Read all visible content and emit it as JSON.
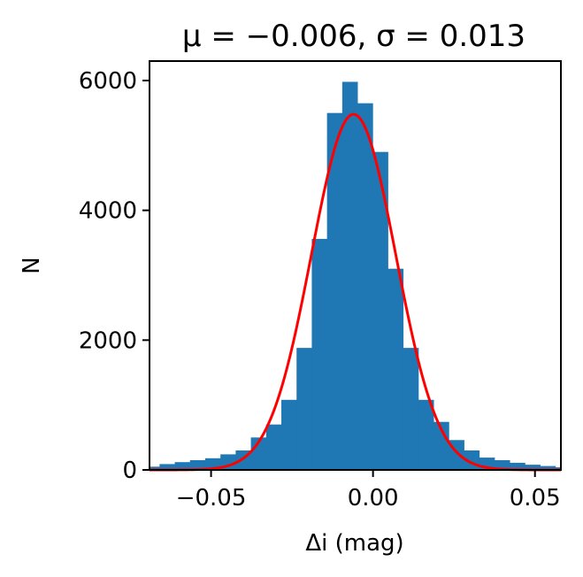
{
  "chart_data": {
    "type": "bar",
    "title": "μ = −0.006, σ = 0.013",
    "xlabel": "Δi (mag)",
    "ylabel": "N",
    "xlim": [
      -0.069,
      0.058
    ],
    "ylim": [
      0,
      6300
    ],
    "xticks": [
      -0.05,
      0.0,
      0.05
    ],
    "xtick_labels": [
      "−0.05",
      "0.00",
      "0.05"
    ],
    "yticks": [
      0,
      2000,
      4000,
      6000
    ],
    "ytick_labels": [
      "0",
      "2000",
      "4000",
      "6000"
    ],
    "grid": false,
    "colors": {
      "bars": "#1f77b4",
      "fit": "#ff0000"
    },
    "histogram": {
      "bin_edges": [
        -0.0706,
        -0.0659,
        -0.0612,
        -0.0565,
        -0.0518,
        -0.0471,
        -0.0424,
        -0.0377,
        -0.033,
        -0.0283,
        -0.0236,
        -0.0189,
        -0.0142,
        -0.0095,
        -0.0048,
        -0.0001,
        0.0046,
        0.0093,
        0.014,
        0.0187,
        0.0234,
        0.0281,
        0.0328,
        0.0375,
        0.0422,
        0.0469,
        0.0516,
        0.0563,
        0.061
      ],
      "counts": [
        50,
        90,
        120,
        150,
        180,
        240,
        300,
        500,
        700,
        1080,
        1880,
        3560,
        5500,
        5980,
        5650,
        4900,
        3100,
        1880,
        1080,
        740,
        460,
        300,
        190,
        150,
        110,
        80,
        60,
        40
      ]
    },
    "fit": {
      "name": "gaussian",
      "mu": -0.006,
      "sigma": 0.013,
      "amplitude": 5480
    }
  }
}
